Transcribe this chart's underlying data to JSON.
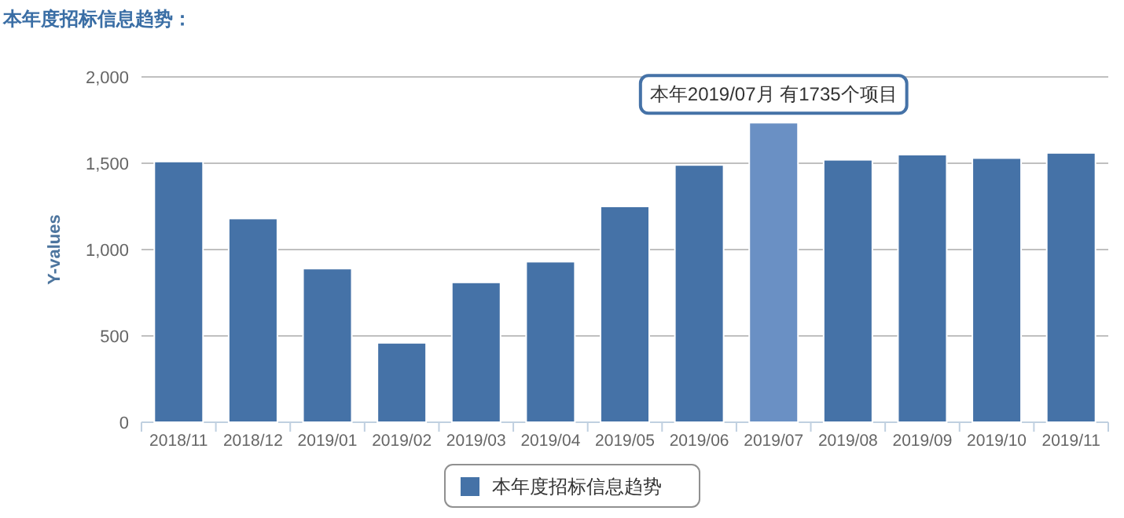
{
  "chart_data": {
    "type": "bar",
    "title": "本年度招标信息趋势：",
    "ylabel": "Y-values",
    "categories": [
      "2018/11",
      "2018/12",
      "2019/01",
      "2019/02",
      "2019/03",
      "2019/04",
      "2019/05",
      "2019/06",
      "2019/07",
      "2019/08",
      "2019/09",
      "2019/10",
      "2019/11"
    ],
    "series": [
      {
        "name": "本年度招标信息趋势",
        "color": "#4572a7",
        "colors": [
          "#4572a7",
          "#4572a7",
          "#4572a7",
          "#4572a7",
          "#4572a7",
          "#4572a7",
          "#4572a7",
          "#4572a7",
          "#6a90c4",
          "#4572a7",
          "#4572a7",
          "#4572a7",
          "#4572a7"
        ],
        "values": [
          1510,
          1180,
          890,
          460,
          810,
          930,
          1250,
          1490,
          1735,
          1520,
          1550,
          1530,
          1560
        ]
      }
    ],
    "ylim": [
      0,
      2000
    ],
    "yticks": [
      {
        "value": 0,
        "label": "0"
      },
      {
        "value": 500,
        "label": "500"
      },
      {
        "value": 1000,
        "label": "1,000"
      },
      {
        "value": 1500,
        "label": "1,500"
      },
      {
        "value": 2000,
        "label": "2,000"
      }
    ],
    "grid": "y",
    "legend": "bottom",
    "annotations": [
      {
        "text": "本年2019/07月 有1735个项目",
        "x": "2019/07",
        "y": 1735
      }
    ]
  }
}
